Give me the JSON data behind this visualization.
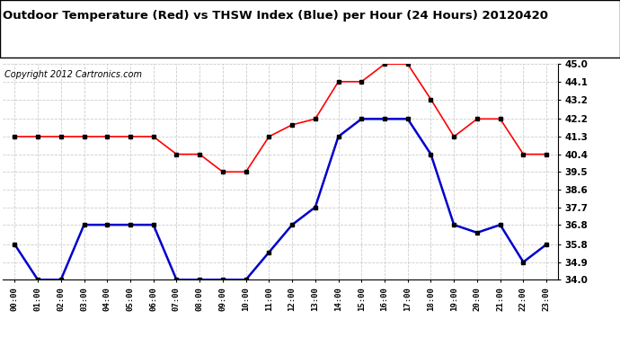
{
  "title": "Outdoor Temperature (Red) vs THSW Index (Blue) per Hour (24 Hours) 20120420",
  "copyright": "Copyright 2012 Cartronics.com",
  "hours": [
    "00:00",
    "01:00",
    "02:00",
    "03:00",
    "04:00",
    "05:00",
    "06:00",
    "07:00",
    "08:00",
    "09:00",
    "10:00",
    "11:00",
    "12:00",
    "13:00",
    "14:00",
    "15:00",
    "16:00",
    "17:00",
    "18:00",
    "19:00",
    "20:00",
    "21:00",
    "22:00",
    "23:00"
  ],
  "red_values": [
    41.3,
    41.3,
    41.3,
    41.3,
    41.3,
    41.3,
    41.3,
    40.4,
    40.4,
    39.5,
    39.5,
    41.3,
    41.9,
    42.2,
    44.1,
    44.1,
    45.0,
    45.0,
    43.2,
    41.3,
    42.2,
    42.2,
    40.4,
    40.4
  ],
  "blue_values": [
    35.8,
    34.0,
    34.0,
    36.8,
    36.8,
    36.8,
    36.8,
    34.0,
    34.0,
    34.0,
    34.0,
    35.4,
    36.8,
    37.7,
    41.3,
    42.2,
    42.2,
    42.2,
    40.4,
    36.8,
    36.4,
    36.8,
    34.9,
    35.8
  ],
  "ylim": [
    34.0,
    45.0
  ],
  "yticks": [
    34.0,
    34.9,
    35.8,
    36.8,
    37.7,
    38.6,
    39.5,
    40.4,
    41.3,
    42.2,
    43.2,
    44.1,
    45.0
  ],
  "bg_color": "#ffffff",
  "grid_color": "#cccccc",
  "red_color": "#ff0000",
  "blue_color": "#0000cc",
  "marker_color": "#000000",
  "title_fontsize": 9.5,
  "copyright_fontsize": 7
}
